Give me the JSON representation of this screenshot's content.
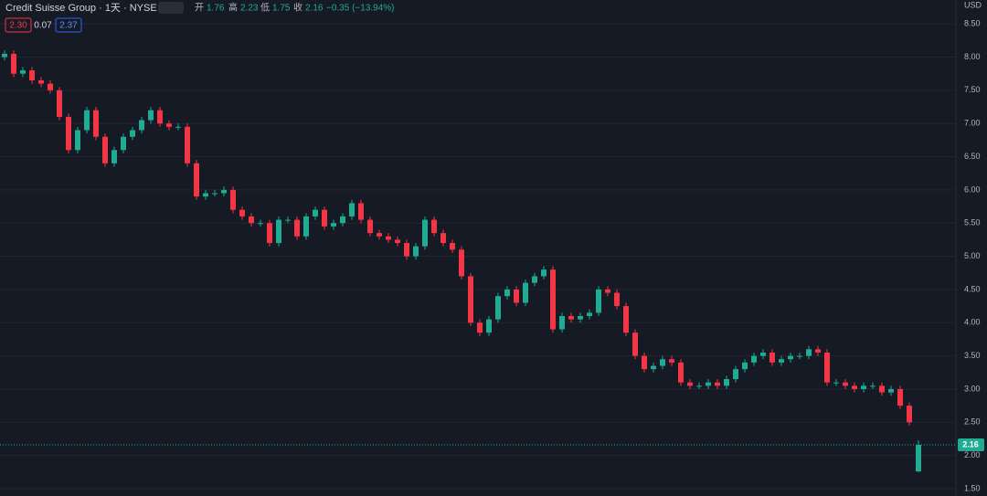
{
  "chart_data": {
    "type": "candlestick",
    "title": "Credit Suisse Group · 1天 · NYSE",
    "legend": {
      "open_label": "开",
      "open": "1.76",
      "high_label": "高",
      "high": "2.23",
      "low_label": "低",
      "low": "1.75",
      "close_label": "收",
      "close": "2.16",
      "change": "−0.35 (−13.94%)"
    },
    "badges": [
      "2.30",
      "0.07",
      "2.37"
    ],
    "currency": "USD",
    "up_color": "#22ab94",
    "down_color": "#f23645",
    "ylim": [
      1.39,
      8.86
    ],
    "yticks": [
      {
        "value": 1.5,
        "label": "1.50"
      },
      {
        "value": 2,
        "label": "2.00"
      },
      {
        "value": 2.5,
        "label": "2.50"
      },
      {
        "value": 3,
        "label": "3.00"
      },
      {
        "value": 3.5,
        "label": "3.50"
      },
      {
        "value": 4,
        "label": "4.00"
      },
      {
        "value": 4.5,
        "label": "4.50"
      },
      {
        "value": 5,
        "label": "5.00"
      },
      {
        "value": 5.5,
        "label": "5.50"
      },
      {
        "value": 6,
        "label": "6.00"
      },
      {
        "value": 6.5,
        "label": "6.50"
      },
      {
        "value": 7,
        "label": "7.00"
      },
      {
        "value": 7.5,
        "label": "7.50"
      },
      {
        "value": 8,
        "label": "8.00"
      },
      {
        "value": 8.5,
        "label": "8.50"
      }
    ],
    "grid": true,
    "price_line": {
      "value": 2.16,
      "label": "2.16"
    },
    "open": [
      8.0,
      8.05,
      7.75,
      7.8,
      7.65,
      7.6,
      7.5,
      7.1,
      6.6,
      6.9,
      7.2,
      6.8,
      6.4,
      6.6,
      6.8,
      6.9,
      7.05,
      7.2,
      7.0,
      6.95,
      6.95,
      6.4,
      5.9,
      5.95,
      5.95,
      6.0,
      5.7,
      5.6,
      5.5,
      5.5,
      5.2,
      5.55,
      5.55,
      5.3,
      5.6,
      5.7,
      5.45,
      5.5,
      5.6,
      5.8,
      5.55,
      5.35,
      5.3,
      5.25,
      5.2,
      5.0,
      5.15,
      5.55,
      5.35,
      5.2,
      5.1,
      4.7,
      4.0,
      3.85,
      4.05,
      4.4,
      4.5,
      4.3,
      4.6,
      4.7,
      4.8,
      3.9,
      4.1,
      4.05,
      4.1,
      4.15,
      4.5,
      4.45,
      4.25,
      3.85,
      3.5,
      3.3,
      3.35,
      3.45,
      3.4,
      3.1,
      3.05,
      3.05,
      3.1,
      3.05,
      3.15,
      3.3,
      3.4,
      3.5,
      3.55,
      3.4,
      3.45,
      3.5,
      3.5,
      3.6,
      3.55,
      3.1,
      3.1,
      3.05,
      3.0,
      3.05,
      3.05,
      2.95,
      3.0,
      2.75,
      1.76
    ],
    "high": [
      8.1,
      8.1,
      7.85,
      7.85,
      7.7,
      7.65,
      7.55,
      7.15,
      6.95,
      7.25,
      7.25,
      6.85,
      6.65,
      6.85,
      6.95,
      7.1,
      7.25,
      7.25,
      7.05,
      7.0,
      7.0,
      6.45,
      6.0,
      6.0,
      6.05,
      6.05,
      5.75,
      5.65,
      5.55,
      5.55,
      5.6,
      5.6,
      5.6,
      5.65,
      5.75,
      5.75,
      5.55,
      5.65,
      5.85,
      5.85,
      5.6,
      5.4,
      5.35,
      5.3,
      5.25,
      5.2,
      5.6,
      5.6,
      5.4,
      5.25,
      5.15,
      4.75,
      4.05,
      4.1,
      4.45,
      4.55,
      4.55,
      4.65,
      4.75,
      4.85,
      4.85,
      4.15,
      4.15,
      4.15,
      4.2,
      4.55,
      4.55,
      4.5,
      4.3,
      3.9,
      3.55,
      3.4,
      3.5,
      3.5,
      3.45,
      3.15,
      3.1,
      3.15,
      3.15,
      3.2,
      3.35,
      3.45,
      3.55,
      3.6,
      3.6,
      3.5,
      3.55,
      3.55,
      3.65,
      3.65,
      3.6,
      3.15,
      3.15,
      3.1,
      3.1,
      3.1,
      3.1,
      3.05,
      3.05,
      2.8,
      2.23
    ],
    "low": [
      7.95,
      7.7,
      7.7,
      7.6,
      7.55,
      7.45,
      7.05,
      6.55,
      6.55,
      6.85,
      6.75,
      6.35,
      6.35,
      6.55,
      6.75,
      6.85,
      7.0,
      6.95,
      6.9,
      6.9,
      6.35,
      5.85,
      5.85,
      5.9,
      5.9,
      5.65,
      5.55,
      5.45,
      5.45,
      5.15,
      5.15,
      5.5,
      5.25,
      5.25,
      5.55,
      5.4,
      5.4,
      5.45,
      5.55,
      5.5,
      5.3,
      5.25,
      5.2,
      5.15,
      4.95,
      4.95,
      5.1,
      5.3,
      5.15,
      5.05,
      4.65,
      3.95,
      3.8,
      3.8,
      4.0,
      4.35,
      4.25,
      4.25,
      4.55,
      4.65,
      3.85,
      3.85,
      4.0,
      4.0,
      4.05,
      4.1,
      4.4,
      4.2,
      3.8,
      3.45,
      3.25,
      3.25,
      3.3,
      3.35,
      3.05,
      3.0,
      3.0,
      3.0,
      3.0,
      3.0,
      3.1,
      3.25,
      3.35,
      3.45,
      3.35,
      3.35,
      3.4,
      3.45,
      3.45,
      3.5,
      3.05,
      3.05,
      3.0,
      2.95,
      2.95,
      3.0,
      2.9,
      2.9,
      2.7,
      2.45,
      1.75
    ],
    "close": [
      8.05,
      7.75,
      7.8,
      7.65,
      7.6,
      7.5,
      7.1,
      6.6,
      6.9,
      7.2,
      6.8,
      6.4,
      6.6,
      6.8,
      6.9,
      7.05,
      7.2,
      7.0,
      6.95,
      6.95,
      6.4,
      5.9,
      5.95,
      5.95,
      6.0,
      5.7,
      5.6,
      5.5,
      5.5,
      5.2,
      5.55,
      5.55,
      5.3,
      5.6,
      5.7,
      5.45,
      5.5,
      5.6,
      5.8,
      5.55,
      5.35,
      5.3,
      5.25,
      5.2,
      5.0,
      5.15,
      5.55,
      5.35,
      5.2,
      5.1,
      4.7,
      4.0,
      3.85,
      4.05,
      4.4,
      4.5,
      4.3,
      4.6,
      4.7,
      4.8,
      3.9,
      4.1,
      4.05,
      4.1,
      4.15,
      4.5,
      4.45,
      4.25,
      3.85,
      3.5,
      3.3,
      3.35,
      3.45,
      3.4,
      3.1,
      3.05,
      3.05,
      3.1,
      3.05,
      3.15,
      3.3,
      3.4,
      3.5,
      3.55,
      3.4,
      3.45,
      3.5,
      3.5,
      3.6,
      3.55,
      3.1,
      3.1,
      3.05,
      3.0,
      3.05,
      3.05,
      2.95,
      3.0,
      2.75,
      2.5,
      2.16
    ]
  }
}
